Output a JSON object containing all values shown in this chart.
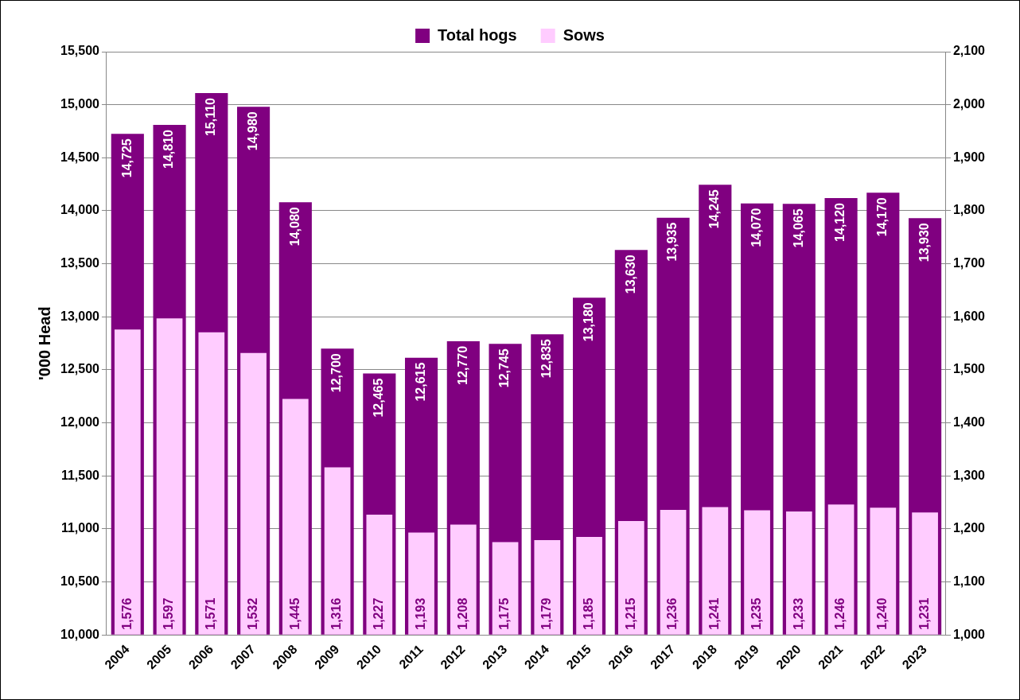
{
  "chart_data": {
    "type": "bar",
    "ylabel": "'000 Head",
    "categories": [
      "2004",
      "2005",
      "2006",
      "2007",
      "2008",
      "2009",
      "2010",
      "2011",
      "2012",
      "2013",
      "2014",
      "2015",
      "2016",
      "2017",
      "2018",
      "2019",
      "2020",
      "2021",
      "2022",
      "2023"
    ],
    "series": [
      {
        "name": "Total hogs",
        "color": "#800080",
        "values": [
          14725,
          14810,
          15110,
          14980,
          14080,
          12700,
          12465,
          12615,
          12770,
          12745,
          12835,
          13180,
          13630,
          13935,
          14245,
          14070,
          14065,
          14120,
          14170,
          13930
        ],
        "value_labels": [
          "14,725",
          "14,810",
          "15,110",
          "14,980",
          "14,080",
          "12,700",
          "12,465",
          "12,615",
          "12,770",
          "12,745",
          "12,835",
          "13,180",
          "13,630",
          "13,935",
          "14,245",
          "14,070",
          "14,065",
          "14,120",
          "14,170",
          "13,930"
        ]
      },
      {
        "name": "Sows",
        "color": "#ffccff",
        "axis": "y2",
        "values": [
          1576,
          1597,
          1571,
          1532,
          1445,
          1316,
          1227,
          1193,
          1208,
          1175,
          1179,
          1185,
          1215,
          1236,
          1241,
          1235,
          1233,
          1246,
          1240,
          1231
        ],
        "value_labels": [
          "1,576",
          "1,597",
          "1,571",
          "1,532",
          "1,445",
          "1,316",
          "1,227",
          "1,193",
          "1,208",
          "1,175",
          "1,179",
          "1,185",
          "1,215",
          "1,236",
          "1,241",
          "1,235",
          "1,233",
          "1,246",
          "1,240",
          "1,231"
        ]
      }
    ],
    "ylim": [
      10000,
      15500
    ],
    "yticks": [
      {
        "value": 10000,
        "label": "10,000"
      },
      {
        "value": 10500,
        "label": "10,500"
      },
      {
        "value": 11000,
        "label": "11,000"
      },
      {
        "value": 11500,
        "label": "11,500"
      },
      {
        "value": 12000,
        "label": "12,000"
      },
      {
        "value": 12500,
        "label": "12,500"
      },
      {
        "value": 13000,
        "label": "13,000"
      },
      {
        "value": 13500,
        "label": "13,500"
      },
      {
        "value": 14000,
        "label": "14,000"
      },
      {
        "value": 14500,
        "label": "14,500"
      },
      {
        "value": 15000,
        "label": "15,000"
      },
      {
        "value": 15500,
        "label": "15,500"
      }
    ],
    "y2lim": [
      1000,
      2100
    ],
    "y2ticks": [
      {
        "value": 1000,
        "label": "1,000"
      },
      {
        "value": 1100,
        "label": "1,100"
      },
      {
        "value": 1200,
        "label": "1,200"
      },
      {
        "value": 1300,
        "label": "1,300"
      },
      {
        "value": 1400,
        "label": "1,400"
      },
      {
        "value": 1500,
        "label": "1,500"
      },
      {
        "value": 1600,
        "label": "1,600"
      },
      {
        "value": 1700,
        "label": "1,700"
      },
      {
        "value": 1800,
        "label": "1,800"
      },
      {
        "value": 1900,
        "label": "1,900"
      },
      {
        "value": 2000,
        "label": "2,000"
      },
      {
        "value": 2100,
        "label": "2,100"
      }
    ],
    "grid": "y",
    "legend": "top"
  }
}
